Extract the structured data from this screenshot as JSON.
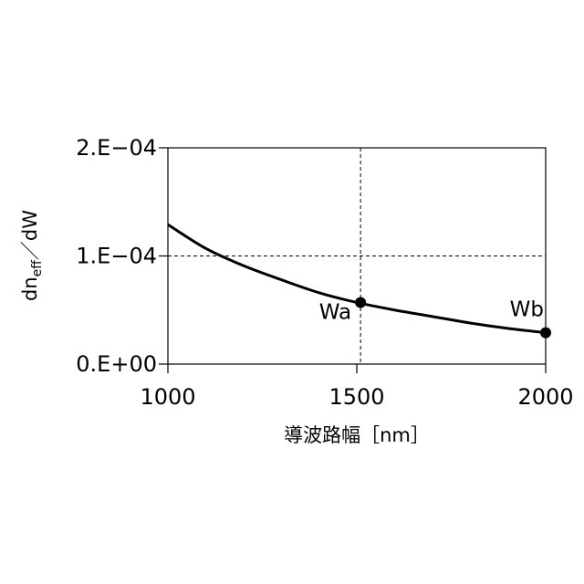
{
  "chart_data": {
    "type": "line",
    "xlabel": "導波路幅［nm］",
    "ylabel": {
      "prefix": "dn",
      "subscript": "eff",
      "suffix": "／dW"
    },
    "xlim": [
      1000,
      2000
    ],
    "ylim": [
      0,
      0.0002
    ],
    "x_ticks": [
      {
        "value": 1000,
        "label": "1000"
      },
      {
        "value": 1500,
        "label": "1500"
      },
      {
        "value": 2000,
        "label": "2000"
      }
    ],
    "y_ticks": [
      {
        "value": 0,
        "label": "0.E+00"
      },
      {
        "value": 0.0001,
        "label": "1.E−04"
      },
      {
        "value": 0.0002,
        "label": "2.E−04"
      }
    ],
    "series": [
      {
        "x": [
          1000,
          1100,
          1200,
          1300,
          1400,
          1500,
          1600,
          1700,
          1800,
          1900,
          2000
        ],
        "y": [
          0.000129,
          0.000107,
          9.1e-05,
          7.8e-05,
          6.6e-05,
          5.7e-05,
          5e-05,
          4.4e-05,
          3.8e-05,
          3.3e-05,
          2.9e-05
        ]
      }
    ],
    "points": [
      {
        "label": "Wa",
        "x": 1510,
        "y": 5.7e-05
      },
      {
        "label": "Wb",
        "x": 2000,
        "y": 2.9e-05
      }
    ],
    "reference_lines": [
      {
        "axis": "x",
        "value": 1510
      },
      {
        "axis": "y",
        "value": 0.0001
      }
    ],
    "grid": false
  }
}
